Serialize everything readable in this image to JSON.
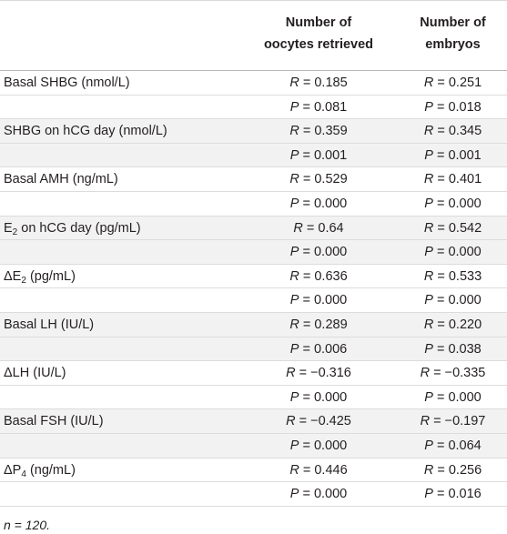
{
  "table": {
    "header": {
      "col1": [
        "Number of",
        "oocytes retrieved"
      ],
      "col2": [
        "Number of",
        "embryos"
      ]
    },
    "rows": [
      {
        "label": "Basal SHBG (nmol/L)",
        "c1": "R = 0.185",
        "c2": "R = 0.251"
      },
      {
        "label": "",
        "c1": "P = 0.081",
        "c2": "P = 0.018"
      },
      {
        "label": "SHBG on hCG day (nmol/L)",
        "c1": "R = 0.359",
        "c2": "R = 0.345"
      },
      {
        "label": "",
        "c1": "P = 0.001",
        "c2": "P = 0.001"
      },
      {
        "label": "Basal AMH (ng/mL)",
        "c1": "R = 0.529",
        "c2": "R = 0.401"
      },
      {
        "label": "",
        "c1": "P = 0.000",
        "c2": "P = 0.000"
      },
      {
        "label": "E2 on hCG day (pg/mL)",
        "c1": "R = 0.64",
        "c2": "R = 0.542"
      },
      {
        "label": "",
        "c1": "P = 0.000",
        "c2": "P = 0.000"
      },
      {
        "label": "ΔE2 (pg/mL)",
        "c1": "R = 0.636",
        "c2": "R = 0.533"
      },
      {
        "label": "",
        "c1": "P = 0.000",
        "c2": "P = 0.000"
      },
      {
        "label": "Basal LH (IU/L)",
        "c1": "R = 0.289",
        "c2": "R = 0.220"
      },
      {
        "label": "",
        "c1": "P = 0.006",
        "c2": "P = 0.038"
      },
      {
        "label": "ΔLH (IU/L)",
        "c1": "R = −0.316",
        "c2": "R = −0.335"
      },
      {
        "label": "",
        "c1": "P = 0.000",
        "c2": "P = 0.000"
      },
      {
        "label": "Basal FSH (IU/L)",
        "c1": "R = −0.425",
        "c2": "R = −0.197"
      },
      {
        "label": "",
        "c1": "P = 0.000",
        "c2": "P = 0.064"
      },
      {
        "label": "ΔP4 (ng/mL)",
        "c1": "R = 0.446",
        "c2": "R = 0.256"
      },
      {
        "label": "",
        "c1": "P = 0.000",
        "c2": "P = 0.016"
      }
    ],
    "footnote": "n = 120."
  }
}
